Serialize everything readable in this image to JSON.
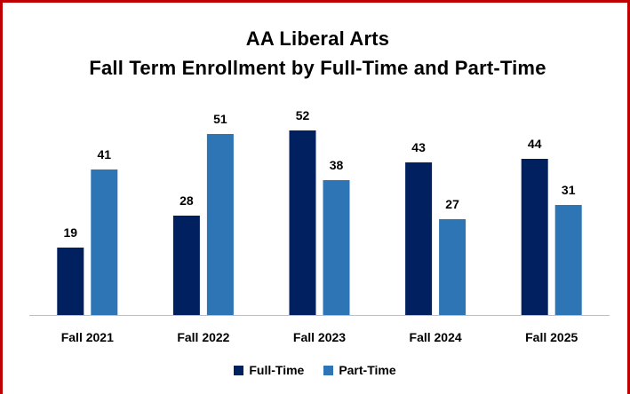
{
  "chart_data": {
    "type": "bar",
    "title_lines": [
      "AA Liberal Arts",
      "Fall Term Enrollment by Full-Time and Part-Time"
    ],
    "categories": [
      "Fall 2021",
      "Fall 2022",
      "Fall 2023",
      "Fall 2024",
      "Fall 2025"
    ],
    "series": [
      {
        "name": "Full-Time",
        "values": [
          19,
          28,
          52,
          43,
          44
        ],
        "color": "#002060"
      },
      {
        "name": "Part-Time",
        "values": [
          41,
          51,
          38,
          27,
          31
        ],
        "color": "#2e75b6"
      }
    ],
    "ylim": [
      0,
      55
    ],
    "grid": false,
    "legend_position": "bottom",
    "border_color": "#c00000"
  }
}
